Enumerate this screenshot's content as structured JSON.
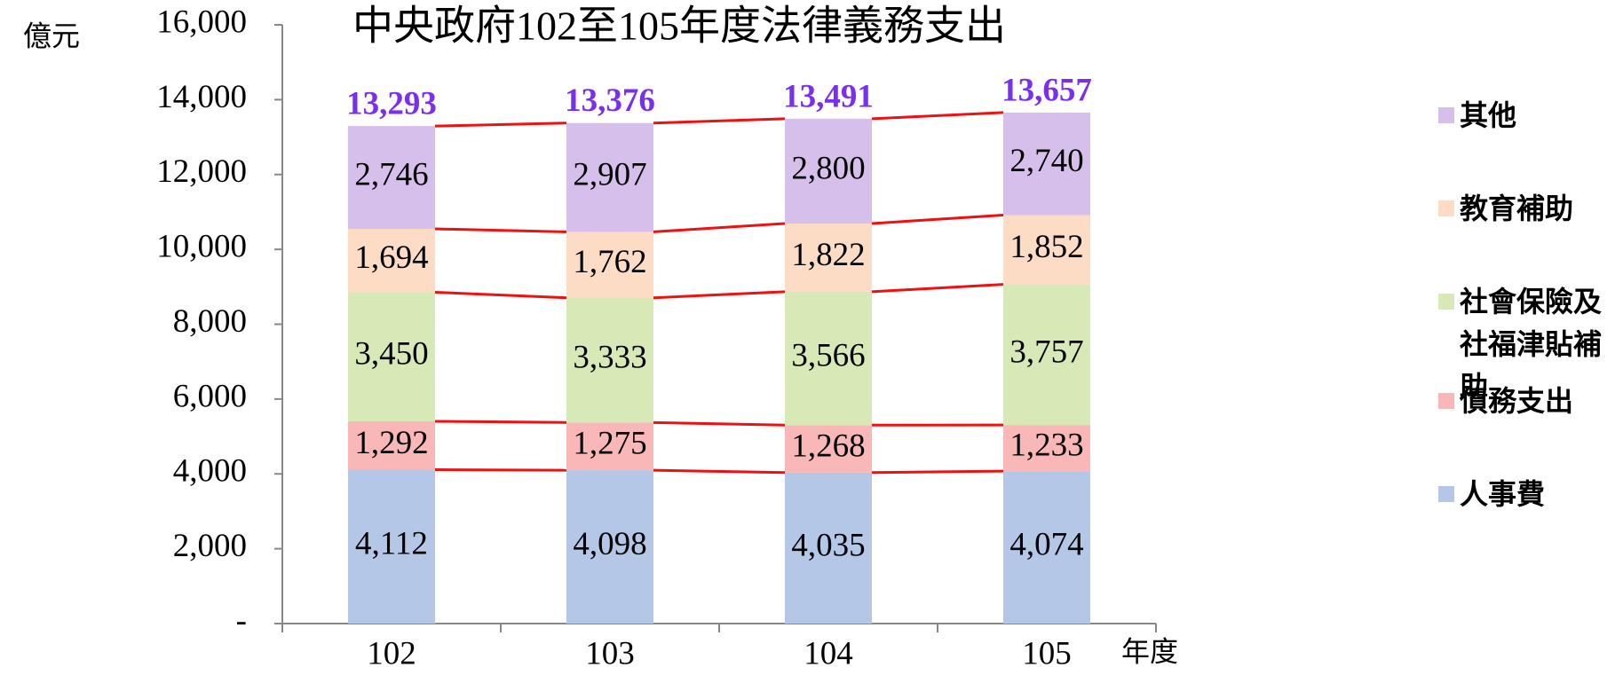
{
  "chart_data": {
    "type": "stacked_bar",
    "title": "中央政府102至105年度法律義務支出",
    "y_axis_label": "億元",
    "x_axis_label": "年度",
    "categories": [
      "102",
      "103",
      "104",
      "105"
    ],
    "series": [
      {
        "name": "人事費",
        "color": "#b4c7e7",
        "values": [
          4112,
          4098,
          4035,
          4074
        ],
        "value_labels": [
          "4,112",
          "4,098",
          "4,035",
          "4,074"
        ]
      },
      {
        "name": "債務支出",
        "color": "#f9b7b7",
        "values": [
          1292,
          1275,
          1268,
          1233
        ],
        "value_labels": [
          "1,292",
          "1,275",
          "1,268",
          "1,233"
        ]
      },
      {
        "name": "社會保險及社福津貼補助",
        "color": "#d8e9b8",
        "values": [
          3450,
          3333,
          3566,
          3757
        ],
        "value_labels": [
          "3,450",
          "3,333",
          "3,566",
          "3,757"
        ]
      },
      {
        "name": "教育補助",
        "color": "#fcdcc5",
        "values": [
          1694,
          1762,
          1822,
          1852
        ],
        "value_labels": [
          "1,694",
          "1,762",
          "1,822",
          "1,852"
        ]
      },
      {
        "name": "其他",
        "color": "#d7bfec",
        "values": [
          2746,
          2907,
          2800,
          2740
        ],
        "value_labels": [
          "2,746",
          "2,907",
          "2,800",
          "2,740"
        ]
      }
    ],
    "totals": [
      13293,
      13376,
      13491,
      13657
    ],
    "total_labels": [
      "13,293",
      "13,376",
      "13,491",
      "13,657"
    ],
    "total_color": "#7a2ff0",
    "line_color": "#ee1111",
    "ylim": [
      0,
      16000
    ],
    "yticks": [
      {
        "value": 0,
        "label": "-"
      },
      {
        "value": 2000,
        "label": "2,000"
      },
      {
        "value": 4000,
        "label": "4,000"
      },
      {
        "value": 6000,
        "label": "6,000"
      },
      {
        "value": 8000,
        "label": "8,000"
      },
      {
        "value": 10000,
        "label": "10,000"
      },
      {
        "value": 12000,
        "label": "12,000"
      },
      {
        "value": 14000,
        "label": "14,000"
      },
      {
        "value": 16000,
        "label": "16,000"
      }
    ],
    "legend": "right"
  }
}
